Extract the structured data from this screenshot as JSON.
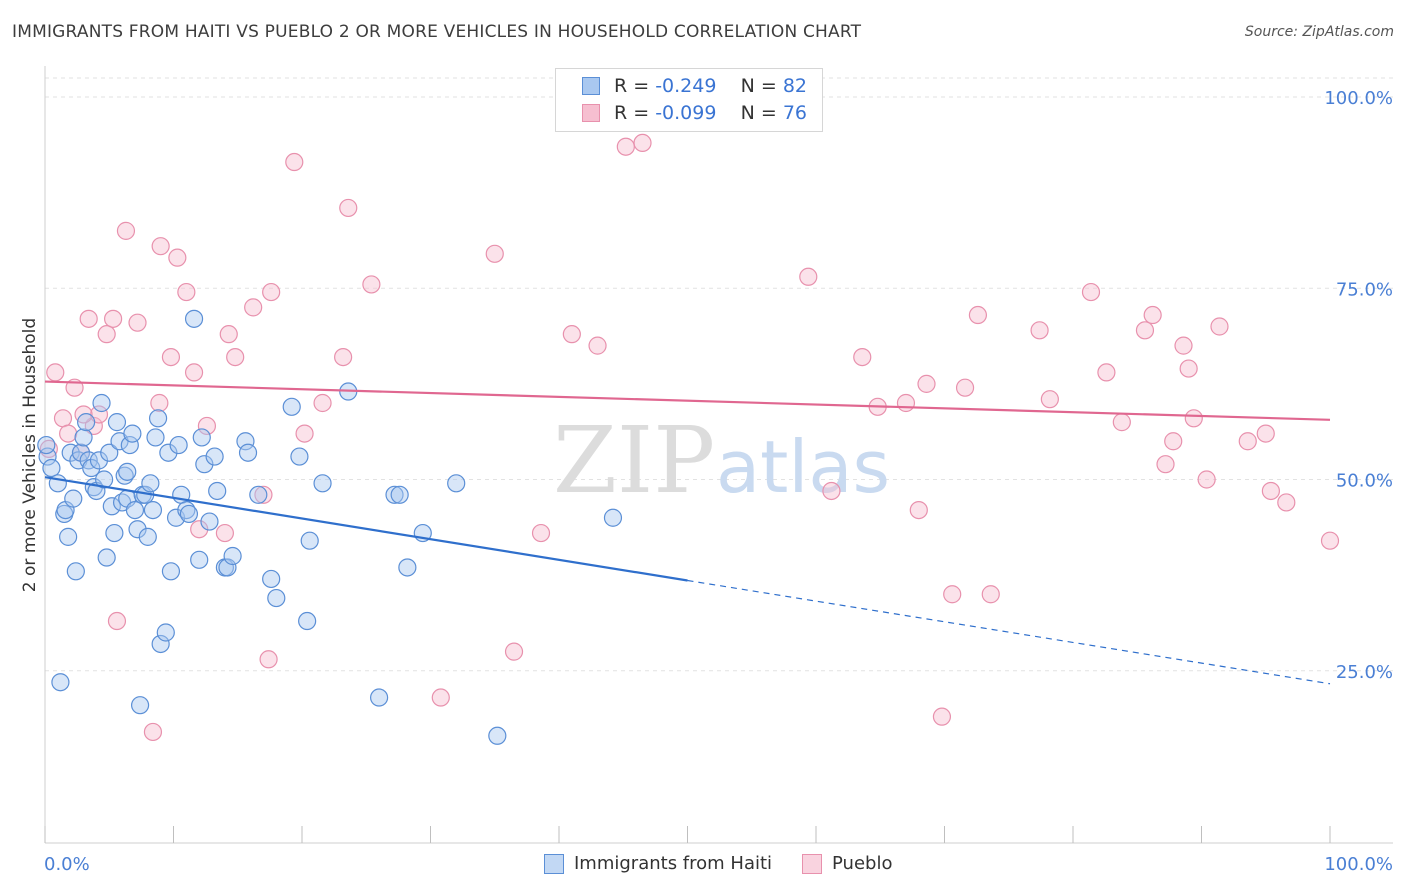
{
  "title": "IMMIGRANTS FROM HAITI VS PUEBLO 2 OR MORE VEHICLES IN HOUSEHOLD CORRELATION CHART",
  "source": "Source: ZipAtlas.com",
  "watermark": {
    "zip": "ZIP",
    "atlas": "atlas"
  },
  "legend_top": [
    {
      "r_label": "R = ",
      "r_value": "-0.249",
      "n_label": "N = ",
      "n_value": "82"
    },
    {
      "r_label": "R = ",
      "r_value": "-0.099",
      "n_label": "N = ",
      "n_value": "76"
    }
  ],
  "legend_bottom": [
    {
      "label": "Immigrants from Haiti"
    },
    {
      "label": "Pueblo"
    }
  ],
  "chart_data": {
    "type": "scatter",
    "title": "IMMIGRANTS FROM HAITI VS PUEBLO 2 OR MORE VEHICLES IN HOUSEHOLD CORRELATION CHART",
    "xlabel": "",
    "ylabel": "2 or more Vehicles in Household",
    "xlim": [
      0,
      100
    ],
    "ylim": [
      0,
      102
    ],
    "x_tick_labels": [
      "0.0%",
      "100.0%"
    ],
    "y_ticks": [
      25,
      50,
      75,
      100
    ],
    "y_tick_labels": [
      "25.0%",
      "50.0%",
      "75.0%",
      "100.0%"
    ],
    "grid": true,
    "colors": {
      "haiti_fill": "#a9c8f0",
      "haiti_stroke": "#5b8fd6",
      "haiti_line": "#2f6fcc",
      "pueblo_fill": "#f6bfd0",
      "pueblo_stroke": "#e891ad",
      "pueblo_line": "#e06790"
    },
    "series": [
      {
        "name": "Immigrants from Haiti",
        "trend": {
          "x0": 0,
          "y0": 50.3,
          "x1": 50,
          "y1": 36.8,
          "dash_to_x": 100,
          "dash_to_y": 23.3
        },
        "points": [
          [
            0.2,
            53.0
          ],
          [
            0.5,
            51.5
          ],
          [
            1.0,
            49.5
          ],
          [
            1.2,
            23.5
          ],
          [
            1.5,
            45.5
          ],
          [
            1.6,
            46.0
          ],
          [
            2.0,
            53.5
          ],
          [
            2.2,
            47.5
          ],
          [
            2.4,
            38.0
          ],
          [
            2.6,
            52.5
          ],
          [
            2.8,
            53.5
          ],
          [
            3.0,
            55.5
          ],
          [
            3.2,
            57.5
          ],
          [
            3.4,
            52.5
          ],
          [
            3.6,
            51.5
          ],
          [
            3.8,
            49.0
          ],
          [
            4.0,
            48.5
          ],
          [
            4.2,
            52.5
          ],
          [
            4.4,
            60.0
          ],
          [
            4.6,
            50.0
          ],
          [
            4.8,
            39.8
          ],
          [
            5.0,
            53.5
          ],
          [
            5.2,
            46.5
          ],
          [
            5.4,
            43.0
          ],
          [
            5.6,
            57.5
          ],
          [
            5.8,
            55.0
          ],
          [
            6.0,
            47.0
          ],
          [
            6.2,
            50.5
          ],
          [
            6.4,
            47.5
          ],
          [
            6.6,
            54.5
          ],
          [
            6.8,
            56.0
          ],
          [
            7.0,
            46.0
          ],
          [
            7.2,
            43.5
          ],
          [
            7.4,
            20.5
          ],
          [
            7.6,
            48.0
          ],
          [
            7.8,
            48.0
          ],
          [
            8.0,
            42.5
          ],
          [
            8.2,
            49.5
          ],
          [
            8.4,
            46.0
          ],
          [
            8.6,
            55.5
          ],
          [
            8.8,
            58.0
          ],
          [
            9.0,
            28.5
          ],
          [
            9.4,
            30.0
          ],
          [
            9.6,
            53.5
          ],
          [
            9.8,
            38.0
          ],
          [
            10.2,
            45.0
          ],
          [
            10.4,
            54.5
          ],
          [
            10.6,
            48.0
          ],
          [
            11.0,
            46.0
          ],
          [
            11.2,
            45.5
          ],
          [
            11.6,
            71.0
          ],
          [
            12.0,
            39.5
          ],
          [
            12.2,
            55.5
          ],
          [
            12.4,
            52.0
          ],
          [
            12.8,
            44.5
          ],
          [
            13.2,
            53.0
          ],
          [
            13.4,
            48.5
          ],
          [
            14.0,
            38.5
          ],
          [
            14.2,
            38.5
          ],
          [
            14.6,
            40.0
          ],
          [
            15.6,
            55.0
          ],
          [
            15.8,
            53.5
          ],
          [
            16.6,
            48.0
          ],
          [
            17.6,
            37.0
          ],
          [
            18.0,
            34.5
          ],
          [
            19.2,
            59.5
          ],
          [
            19.8,
            53.0
          ],
          [
            20.4,
            31.5
          ],
          [
            20.6,
            42.0
          ],
          [
            21.6,
            49.5
          ],
          [
            23.6,
            61.5
          ],
          [
            26.0,
            21.5
          ],
          [
            27.2,
            48.0
          ],
          [
            27.6,
            48.0
          ],
          [
            28.2,
            38.5
          ],
          [
            29.4,
            43.0
          ],
          [
            32.0,
            49.5
          ],
          [
            35.2,
            16.5
          ],
          [
            44.2,
            45.0
          ],
          [
            0.1,
            54.5
          ],
          [
            1.8,
            42.5
          ],
          [
            6.4,
            51.0
          ]
        ]
      },
      {
        "name": "Pueblo",
        "trend": {
          "x0": 0,
          "y0": 62.8,
          "x1": 100,
          "y1": 57.8
        },
        "points": [
          [
            0.3,
            54.0
          ],
          [
            0.8,
            64.0
          ],
          [
            1.4,
            58.0
          ],
          [
            1.8,
            56.0
          ],
          [
            2.3,
            62.0
          ],
          [
            2.8,
            53.5
          ],
          [
            3.4,
            71.0
          ],
          [
            3.8,
            57.0
          ],
          [
            4.2,
            58.5
          ],
          [
            4.8,
            69.0
          ],
          [
            5.3,
            71.0
          ],
          [
            5.6,
            31.5
          ],
          [
            6.3,
            82.5
          ],
          [
            7.2,
            70.5
          ],
          [
            8.4,
            17.0
          ],
          [
            8.9,
            60.0
          ],
          [
            9.0,
            80.5
          ],
          [
            9.8,
            66.0
          ],
          [
            10.3,
            79.0
          ],
          [
            11.0,
            74.5
          ],
          [
            11.6,
            64.0
          ],
          [
            12.0,
            43.5
          ],
          [
            12.6,
            57.0
          ],
          [
            14.0,
            43.0
          ],
          [
            14.3,
            69.0
          ],
          [
            14.8,
            66.0
          ],
          [
            16.2,
            72.5
          ],
          [
            17.0,
            48.0
          ],
          [
            17.4,
            26.5
          ],
          [
            17.6,
            74.5
          ],
          [
            19.4,
            91.5
          ],
          [
            20.2,
            56.0
          ],
          [
            21.6,
            60.0
          ],
          [
            23.2,
            66.0
          ],
          [
            23.6,
            85.5
          ],
          [
            25.4,
            75.5
          ],
          [
            30.8,
            21.5
          ],
          [
            35.0,
            79.5
          ],
          [
            36.5,
            27.5
          ],
          [
            38.6,
            43.0
          ],
          [
            41.0,
            69.0
          ],
          [
            43.0,
            67.5
          ],
          [
            45.2,
            93.5
          ],
          [
            46.5,
            94.0
          ],
          [
            59.4,
            76.5
          ],
          [
            61.2,
            48.5
          ],
          [
            63.6,
            66.0
          ],
          [
            64.8,
            59.5
          ],
          [
            67.0,
            60.0
          ],
          [
            68.0,
            46.0
          ],
          [
            68.6,
            62.5
          ],
          [
            69.8,
            19.0
          ],
          [
            70.6,
            35.0
          ],
          [
            71.6,
            62.0
          ],
          [
            72.6,
            71.5
          ],
          [
            73.6,
            35.0
          ],
          [
            77.4,
            69.5
          ],
          [
            78.2,
            60.5
          ],
          [
            81.4,
            74.5
          ],
          [
            82.6,
            64.0
          ],
          [
            83.8,
            57.5
          ],
          [
            85.6,
            69.5
          ],
          [
            86.2,
            71.5
          ],
          [
            87.2,
            52.0
          ],
          [
            87.8,
            55.0
          ],
          [
            88.6,
            67.5
          ],
          [
            89.0,
            64.5
          ],
          [
            89.4,
            58.0
          ],
          [
            90.4,
            50.0
          ],
          [
            91.4,
            70.0
          ],
          [
            93.6,
            55.0
          ],
          [
            95.0,
            56.0
          ],
          [
            95.4,
            48.5
          ],
          [
            96.6,
            47.0
          ],
          [
            100.0,
            42.0
          ],
          [
            3.0,
            58.5
          ]
        ]
      }
    ]
  }
}
